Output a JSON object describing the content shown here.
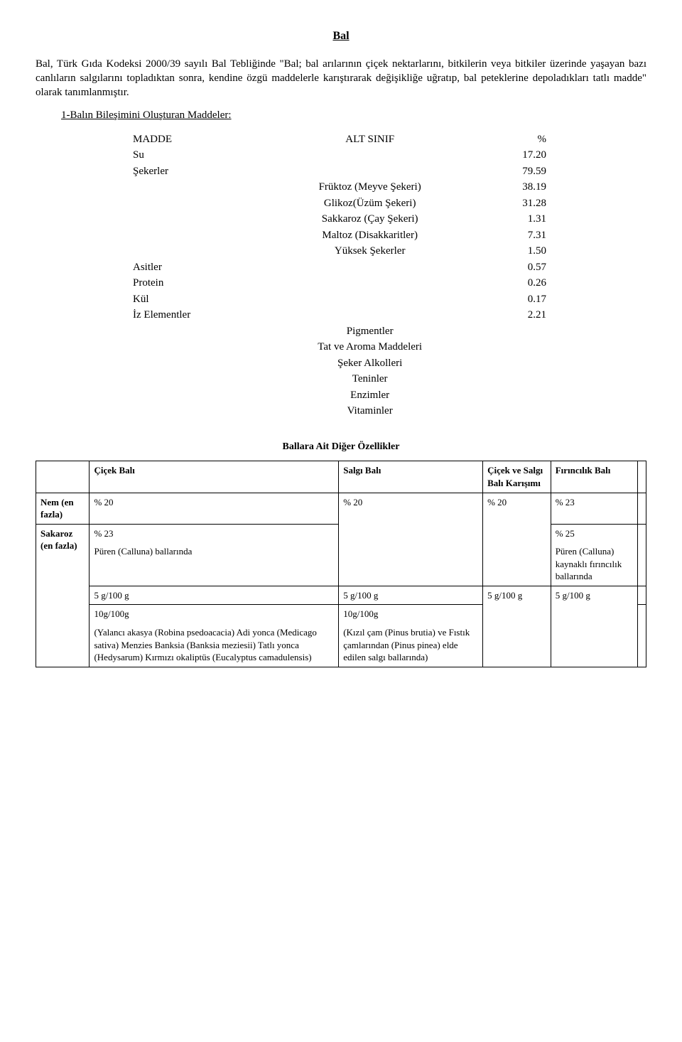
{
  "title": "Bal",
  "paragraph": "Bal, Türk Gıda Kodeksi 2000/39 sayılı Bal Tebliğinde \"Bal; bal arılarının çiçek nektarlarını, bitkilerin veya bitkiler üzerinde yaşayan bazı canlıların salgılarını topladıktan sonra, kendine özgü maddelerle karıştırarak değişikliğe uğratıp, bal peteklerine depoladıkları tatlı madde\" olarak tanımlanmıştır.",
  "subheading": "1-Balın Bileşimini Oluşturan Maddeler:",
  "compTable": {
    "header": {
      "c1": "MADDE",
      "c2": "ALT SINIF",
      "c3": "%"
    },
    "rows": [
      {
        "c1": "Su",
        "c2": "",
        "c3": "17.20"
      },
      {
        "c1": "Şekerler",
        "c2": "",
        "c3": "79.59"
      },
      {
        "c1": "",
        "c2": "Früktoz (Meyve Şekeri)",
        "c3": "38.19"
      },
      {
        "c1": "",
        "c2": "Glikoz(Üzüm Şekeri)",
        "c3": "31.28"
      },
      {
        "c1": "",
        "c2": "Sakkaroz (Çay Şekeri)",
        "c3": "1.31"
      },
      {
        "c1": "",
        "c2": "Maltoz (Disakkaritler)",
        "c3": "7.31"
      },
      {
        "c1": "",
        "c2": "Yüksek Şekerler",
        "c3": "1.50"
      },
      {
        "c1": "Asitler",
        "c2": "",
        "c3": "0.57"
      },
      {
        "c1": "Protein",
        "c2": "",
        "c3": "0.26"
      },
      {
        "c1": "Kül",
        "c2": "",
        "c3": "0.17"
      },
      {
        "c1": "İz Elementler",
        "c2": "",
        "c3": "2.21"
      },
      {
        "c1": "",
        "c2": "Pigmentler",
        "c3": ""
      },
      {
        "c1": "",
        "c2": "Tat ve Aroma Maddeleri",
        "c3": ""
      },
      {
        "c1": "",
        "c2": "Şeker Alkolleri",
        "c3": ""
      },
      {
        "c1": "",
        "c2": "Teninler",
        "c3": ""
      },
      {
        "c1": "",
        "c2": "Enzimler",
        "c3": ""
      },
      {
        "c1": "",
        "c2": "Vitaminler",
        "c3": ""
      }
    ]
  },
  "featuresTitle": "Ballara Ait Diğer Özellikler",
  "feat": {
    "headers": [
      "",
      "Çiçek Balı",
      "Salgı Balı",
      "Çiçek ve Salgı Balı Karışımı",
      "Fırıncılık Balı"
    ],
    "row1": {
      "label": "Nem (en fazla)",
      "c1": "% 20",
      "c2": "% 20",
      "c3": "% 20",
      "c4": "% 23"
    },
    "row2": {
      "c1a": "% 23",
      "c1b": "Püren (Calluna) ballarında",
      "c4a": "% 25",
      "c4b": "Püren (Calluna) kaynaklı fırıncılık ballarında"
    },
    "row3": {
      "label": "Sakaroz (en fazla)",
      "c1": "5 g/100 g",
      "c2": "5 g/100 g",
      "c3": "5 g/100 g",
      "c4": "5 g/100 g"
    },
    "row4": {
      "c1a": "10g/100g",
      "c1b": "(Yalancı akasya (Robina psedoacacia) Adi yonca (Medicago sativa) Menzies Banksia (Banksia meziesii) Tatlı yonca (Hedysarum) Kırmızı okaliptüs (Eucalyptus camadulensis)",
      "c2a": "10g/100g",
      "c2b": "(Kızıl çam (Pinus brutia) ve Fıstık çamlarından (Pinus pinea) elde edilen salgı ballarında)"
    }
  }
}
